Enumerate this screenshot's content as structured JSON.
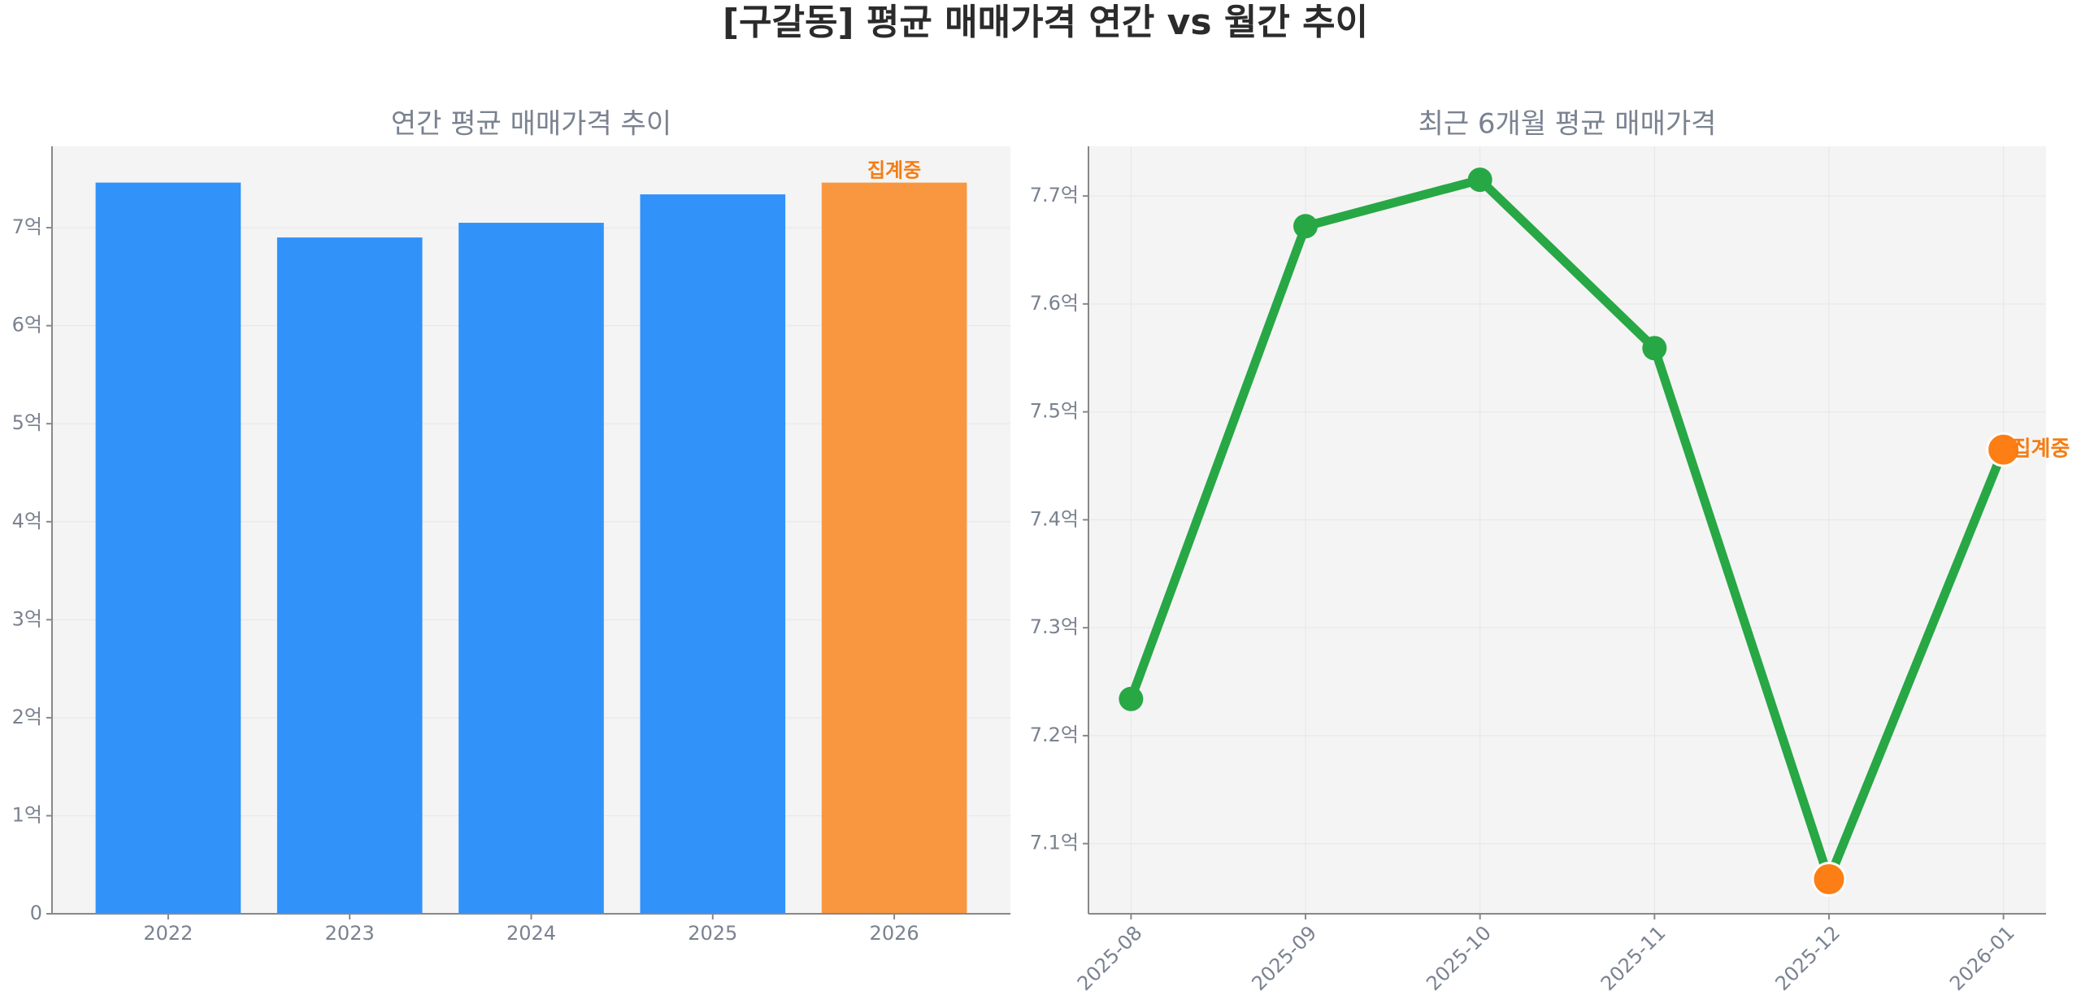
{
  "title": "[구갈동] 평균 매매가격 연간 vs 월간 추이",
  "chart_data": [
    {
      "type": "bar",
      "title": "연간 평균 매매가격 추이",
      "categories": [
        "2022",
        "2023",
        "2024",
        "2025",
        "2026"
      ],
      "values": [
        7.46,
        6.9,
        7.05,
        7.34,
        7.46
      ],
      "colors": [
        "#3192fa",
        "#3192fa",
        "#3192fa",
        "#3192fa",
        "#f99740"
      ],
      "annotation": "집계중",
      "ylim": [
        0,
        7.83
      ],
      "yticks": [
        0,
        {
          "value": 1,
          "label": "1억"
        },
        {
          "value": 2,
          "label": "2억"
        },
        {
          "value": 3,
          "label": "3억"
        },
        {
          "value": 4,
          "label": "4억"
        },
        {
          "value": 5,
          "label": "5억"
        },
        {
          "value": 6,
          "label": "6억"
        },
        {
          "value": 7,
          "label": "7억"
        }
      ],
      "grid": true
    },
    {
      "type": "line",
      "title": "최근 6개월 평균 매매가격",
      "categories": [
        "2025-08",
        "2025-09",
        "2025-10",
        "2025-11",
        "2025-12",
        "2026-01"
      ],
      "values": [
        7.234,
        7.672,
        7.715,
        7.559,
        7.067,
        7.465
      ],
      "color": "#28a745",
      "marker_colors": [
        "#28a745",
        "#28a745",
        "#28a745",
        "#28a745",
        "#fd7e14",
        "#fd7e14"
      ],
      "annotation": "집계중",
      "ylim": [
        7.035,
        7.746
      ],
      "yticks": [
        {
          "value": 7.1,
          "label": "7.1억"
        },
        {
          "value": 7.2,
          "label": "7.2억"
        },
        {
          "value": 7.3,
          "label": "7.3억"
        },
        {
          "value": 7.4,
          "label": "7.4억"
        },
        {
          "value": 7.5,
          "label": "7.5억"
        },
        {
          "value": 7.6,
          "label": "7.6억"
        },
        {
          "value": 7.7,
          "label": "7.7억"
        }
      ],
      "grid": true
    }
  ]
}
